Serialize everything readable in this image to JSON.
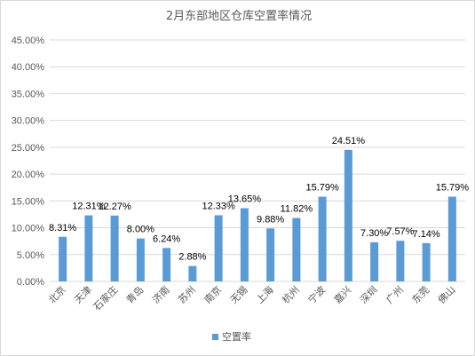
{
  "chart_data": {
    "type": "bar",
    "title": "2月东部地区仓库空置率情况",
    "categories": [
      "北京",
      "天津",
      "石家庄",
      "青岛",
      "济南",
      "苏州",
      "南京",
      "无锡",
      "上海",
      "杭州",
      "宁波",
      "嘉兴",
      "深圳",
      "广州",
      "东莞",
      "佛山"
    ],
    "series": [
      {
        "name": "空置率",
        "values": [
          8.31,
          12.31,
          12.27,
          8.0,
          6.24,
          2.88,
          12.33,
          13.65,
          9.88,
          11.82,
          15.79,
          24.51,
          7.3,
          7.57,
          7.14,
          15.79
        ],
        "labels": [
          "8.31%",
          "12.31%",
          "12.27%",
          "8.00%",
          "6.24%",
          "2.88%",
          "12.33%",
          "13.65%",
          "9.88%",
          "11.82%",
          "15.79%",
          "24.51%",
          "7.30%",
          "7.57%",
          "7.14%",
          "15.79%"
        ]
      }
    ],
    "ylim": [
      0,
      45
    ],
    "yticks": [
      "0.00%",
      "5.00%",
      "10.00%",
      "15.00%",
      "20.00%",
      "25.00%",
      "30.00%",
      "35.00%",
      "40.00%",
      "45.00%"
    ],
    "grid": true,
    "legend": "bottom",
    "colors": {
      "bar": "#5b9bd5",
      "grid": "#d9d9d9"
    }
  }
}
